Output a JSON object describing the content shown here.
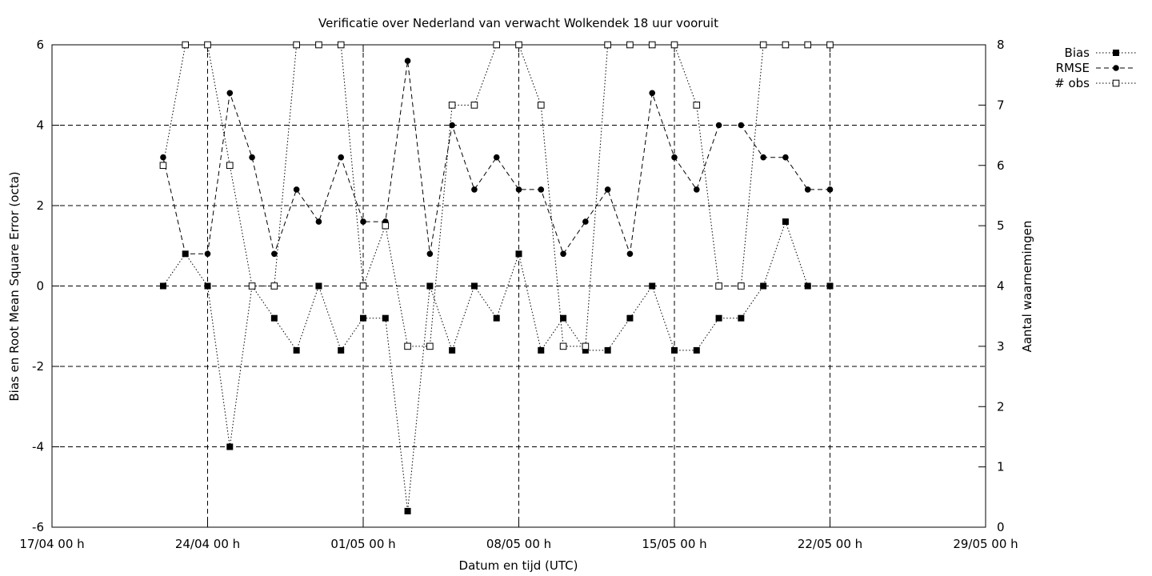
{
  "chart_data": {
    "type": "line",
    "title": "Verificatie over Nederland van verwacht Wolkendek 18 uur vooruit",
    "xlabel": "Datum en tijd (UTC)",
    "ylabel": "Bias en Root Mean Square Error (octa)",
    "y2label": "Aantal waarnemingen",
    "xlim_days": [
      0,
      42
    ],
    "ylim": [
      -6,
      6
    ],
    "y2lim": [
      0,
      8
    ],
    "grid": true,
    "legend_position": "top-right outside",
    "x_tick_labels": [
      "17/04 00 h",
      "24/04 00 h",
      "01/05 00 h",
      "08/05 00 h",
      "15/05 00 h",
      "22/05 00 h",
      "29/05 00 h"
    ],
    "y_tick_labels": [
      "6",
      "4",
      "2",
      "0",
      "-2",
      "-4",
      "-6"
    ],
    "y2_tick_labels": [
      "8",
      "7",
      "6",
      "5",
      "4",
      "3",
      "2",
      "1",
      "0"
    ],
    "x": [
      "22/04",
      "23/04",
      "24/04",
      "25/04",
      "26/04",
      "27/04",
      "28/04",
      "29/04",
      "30/04",
      "01/05",
      "02/05",
      "03/05",
      "04/05",
      "05/05",
      "06/05",
      "07/05",
      "08/05",
      "09/05",
      "10/05",
      "11/05",
      "12/05",
      "13/05",
      "14/05",
      "15/05",
      "16/05",
      "17/05",
      "18/05",
      "19/05",
      "20/05",
      "21/05",
      "22/05",
      "23/05"
    ],
    "series": [
      {
        "name": "Bias",
        "axis": "left",
        "style": "dotted",
        "marker": "filled-square",
        "values": [
          0,
          0.8,
          0,
          -4,
          0,
          -0.8,
          -1.6,
          0,
          -1.6,
          -0.8,
          -0.8,
          -5.6,
          0,
          -1.6,
          0,
          -0.8,
          0.8,
          -1.6,
          -0.8,
          -1.6,
          -1.6,
          -0.8,
          0,
          -1.6,
          -1.6,
          -0.8,
          -0.8,
          0,
          1.6,
          0,
          0,
          null
        ]
      },
      {
        "name": "RMSE",
        "axis": "left",
        "style": "dashed",
        "marker": "filled-circle",
        "values": [
          3.2,
          0.8,
          0.8,
          4.8,
          3.2,
          0.8,
          2.4,
          1.6,
          3.2,
          1.6,
          1.6,
          5.6,
          0.8,
          4.0,
          2.4,
          3.2,
          2.4,
          2.4,
          0.8,
          1.6,
          2.4,
          0.8,
          4.8,
          3.2,
          2.4,
          4.0,
          4.0,
          3.2,
          3.2,
          2.4,
          2.4,
          null
        ]
      },
      {
        "name": "# obs",
        "axis": "right",
        "style": "dotted",
        "marker": "open-square",
        "values": [
          6,
          8,
          8,
          6,
          4,
          4,
          8,
          8,
          8,
          4,
          5,
          3,
          3,
          7,
          7,
          8,
          8,
          7,
          3,
          3,
          8,
          8,
          8,
          8,
          7,
          4,
          4,
          8,
          8,
          8,
          8,
          null
        ]
      }
    ]
  }
}
